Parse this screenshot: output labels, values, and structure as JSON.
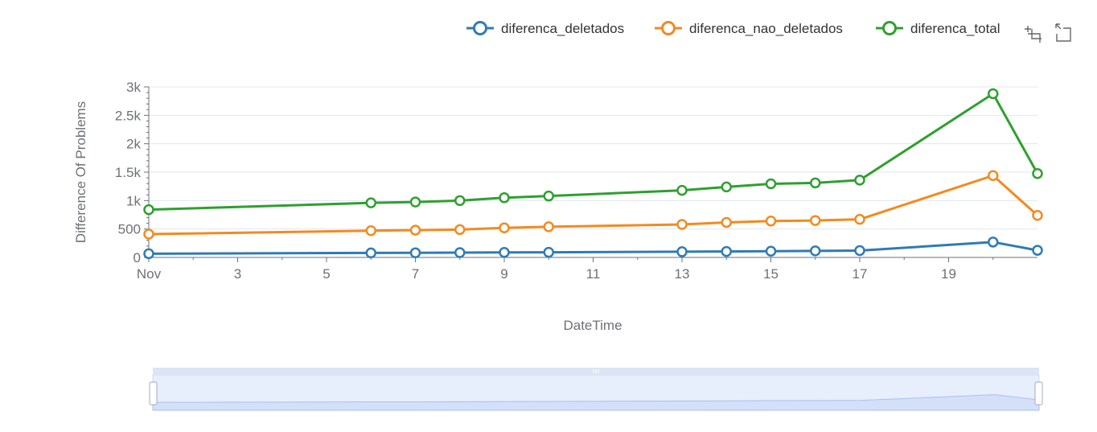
{
  "colors": {
    "diferenca_deletados": "#2f7bb5",
    "diferenca_nao_deletados": "#f48a1e",
    "diferenca_total": "#2ea02e",
    "grid": "#e0e6f1",
    "axis": "#6e7079",
    "zoom_fill": "#d3e0f8",
    "zoom_border": "#d2dbee"
  },
  "toolbox": {
    "icons": [
      "zoom-icon",
      "zoom-reset-icon"
    ]
  },
  "chart_data": {
    "type": "line",
    "xlabel": "DateTime",
    "ylabel": "Difference Of Problems",
    "x": [
      1,
      6,
      7,
      8,
      9,
      10,
      13,
      14,
      15,
      16,
      17,
      20,
      21
    ],
    "xlim": [
      1,
      21
    ],
    "x_ticks": [
      1,
      3,
      5,
      7,
      9,
      11,
      13,
      15,
      17,
      19
    ],
    "x_tick_labels": [
      "Nov",
      "3",
      "5",
      "7",
      "9",
      "11",
      "13",
      "15",
      "17",
      "19"
    ],
    "ylim": [
      0,
      3000
    ],
    "y_ticks": [
      0,
      500,
      1000,
      1500,
      2000,
      2500,
      3000
    ],
    "y_tick_labels": [
      "0",
      "500",
      "1k",
      "1.5k",
      "2k",
      "2.5k",
      "3k"
    ],
    "grid": true,
    "legend_position": "top-right",
    "series": [
      {
        "name": "diferenca_deletados",
        "values": [
          65,
          80,
          82,
          85,
          88,
          90,
          100,
          105,
          110,
          115,
          120,
          270,
          125
        ]
      },
      {
        "name": "diferenca_nao_deletados",
        "values": [
          410,
          470,
          480,
          490,
          520,
          540,
          580,
          615,
          640,
          650,
          670,
          1440,
          740
        ]
      },
      {
        "name": "diferenca_total",
        "values": [
          840,
          960,
          975,
          1000,
          1050,
          1080,
          1180,
          1240,
          1295,
          1310,
          1360,
          2880,
          1475
        ]
      }
    ],
    "datazoom": {
      "start": 0,
      "end": 100
    }
  }
}
